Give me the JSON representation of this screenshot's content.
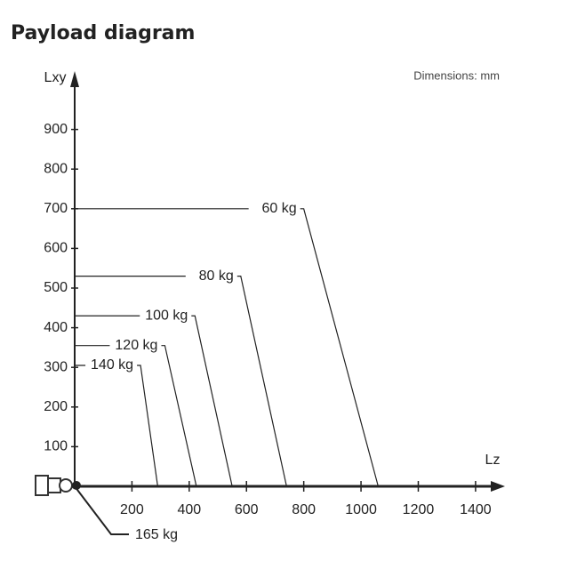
{
  "chart_data": {
    "type": "line",
    "title": "Payload diagram",
    "note": "Dimensions: mm",
    "x_label": "Lz",
    "y_label": "Lxy",
    "xlim": [
      0,
      1450
    ],
    "ylim": [
      0,
      1000
    ],
    "xticks": [
      200,
      400,
      600,
      800,
      1000,
      1200,
      1400
    ],
    "yticks": [
      100,
      200,
      300,
      400,
      500,
      600,
      700,
      800,
      900
    ],
    "series": [
      {
        "name": "60 kg",
        "color": "#222222",
        "x": [
          0,
          800,
          1060
        ],
        "values": [
          700,
          700,
          0
        ]
      },
      {
        "name": "80 kg",
        "color": "#222222",
        "x": [
          0,
          580,
          740
        ],
        "values": [
          530,
          530,
          0
        ]
      },
      {
        "name": "100 kg",
        "color": "#222222",
        "x": [
          0,
          420,
          550
        ],
        "values": [
          430,
          430,
          0
        ]
      },
      {
        "name": "120 kg",
        "color": "#222222",
        "x": [
          0,
          315,
          425
        ],
        "values": [
          355,
          355,
          0
        ]
      },
      {
        "name": "140 kg",
        "color": "#222222",
        "x": [
          0,
          230,
          290
        ],
        "values": [
          305,
          305,
          0
        ]
      },
      {
        "name": "165 kg",
        "color": "#222222",
        "x": [
          0
        ],
        "values": [
          0
        ]
      }
    ]
  }
}
